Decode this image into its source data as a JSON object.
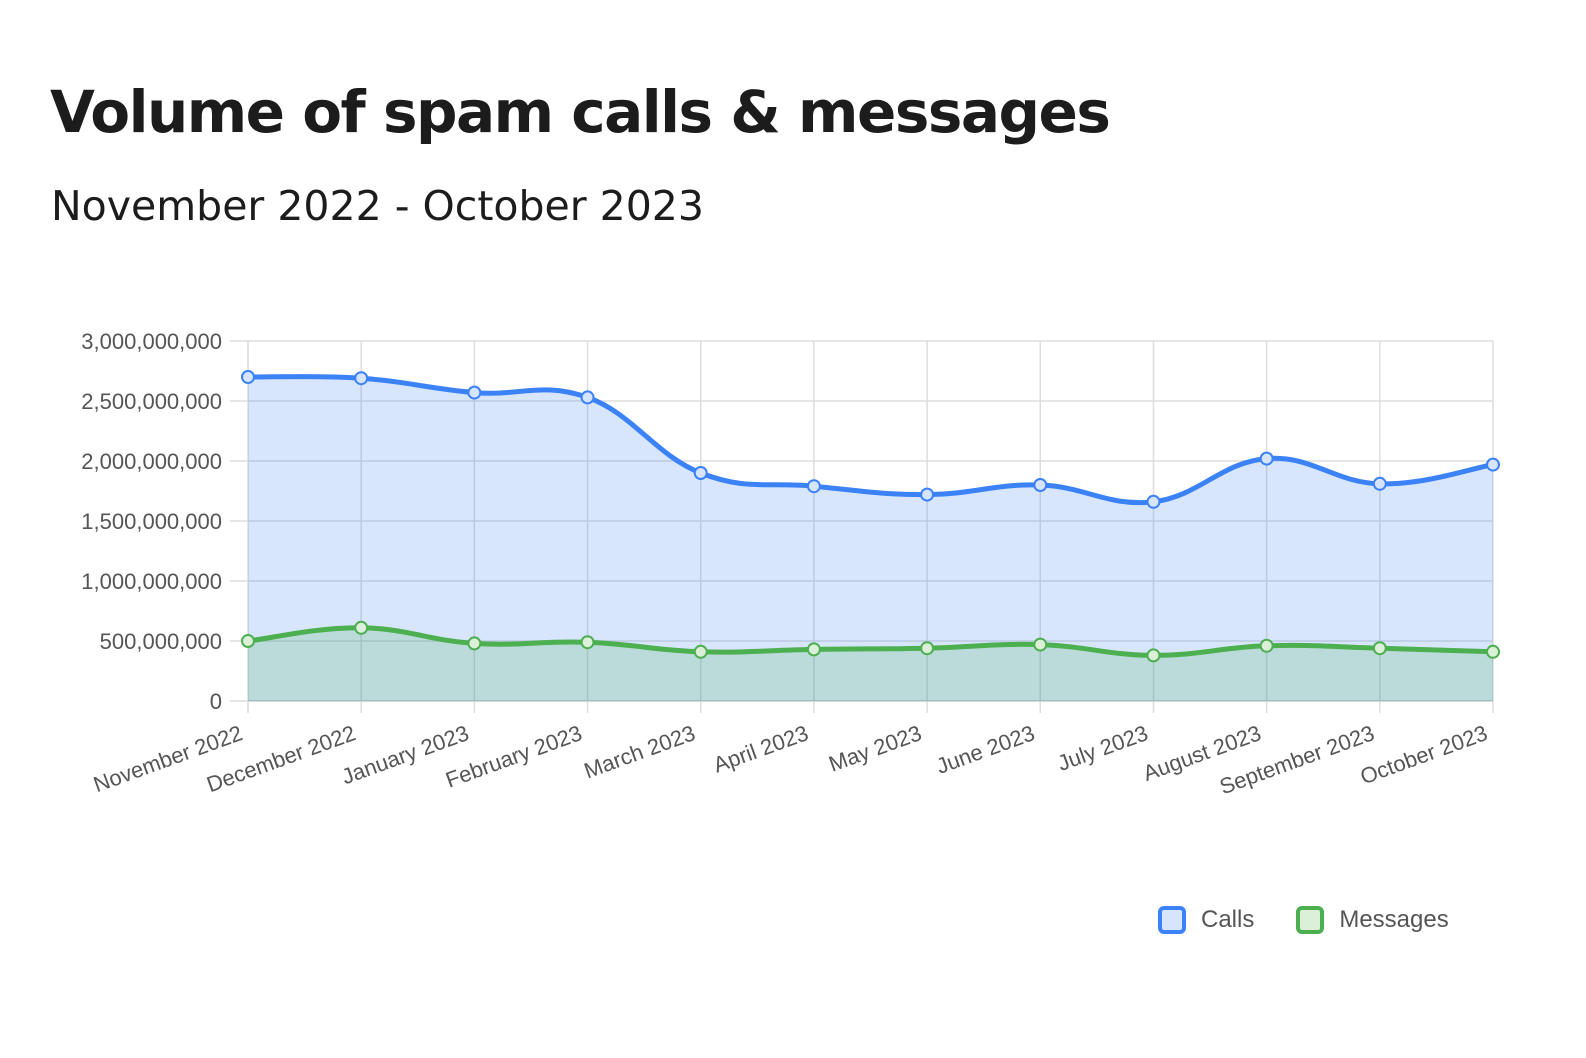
{
  "header": {
    "title": "Volume of spam calls & messages",
    "subtitle": "November 2022 - October 2023"
  },
  "chart_data": {
    "type": "area",
    "categories": [
      "November 2022",
      "December 2022",
      "January 2023",
      "February 2023",
      "March 2023",
      "April 2023",
      "May 2023",
      "June 2023",
      "July 2023",
      "August 2023",
      "September 2023",
      "October 2023"
    ],
    "series": [
      {
        "name": "Calls",
        "color": "#3b82f6",
        "fill": "#d6e4fd",
        "values": [
          2700000000,
          2690000000,
          2570000000,
          2530000000,
          1900000000,
          1790000000,
          1720000000,
          1800000000,
          1660000000,
          2020000000,
          1810000000,
          1970000000
        ]
      },
      {
        "name": "Messages",
        "color": "#4caf50",
        "fill": "#dcefd9",
        "values": [
          500000000,
          610000000,
          480000000,
          490000000,
          410000000,
          430000000,
          440000000,
          470000000,
          380000000,
          460000000,
          440000000,
          410000000
        ]
      }
    ],
    "ylim": [
      0,
      3000000000
    ],
    "y_ticks": [
      {
        "value": 0,
        "label": "0"
      },
      {
        "value": 500000000,
        "label": "500,000,000"
      },
      {
        "value": 1000000000,
        "label": "1,000,000,000"
      },
      {
        "value": 1500000000,
        "label": "1,500,000,000"
      },
      {
        "value": 2000000000,
        "label": "2,000,000,000"
      },
      {
        "value": 2500000000,
        "label": "2,500,000,000"
      },
      {
        "value": 3000000000,
        "label": "3,000,000,000"
      }
    ],
    "grid": true,
    "smooth": true,
    "legend_position": "bottom-right",
    "xlabel": "",
    "ylabel": ""
  }
}
